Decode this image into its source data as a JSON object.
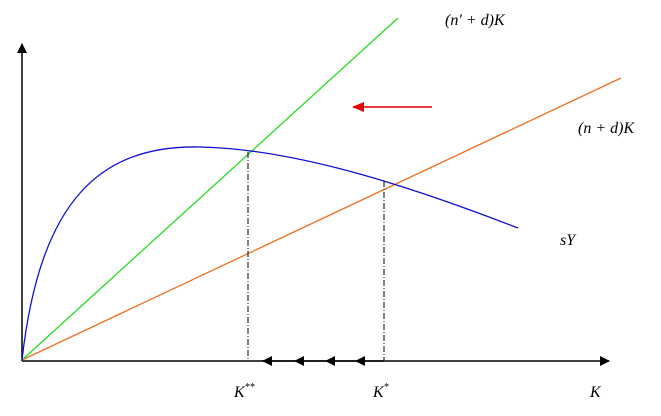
{
  "labels": {
    "line_high": "(n′ + d)K",
    "line_low": "(n + d)K",
    "curve": "sY",
    "k_new": {
      "base": "K",
      "sup": "**"
    },
    "k_old": {
      "base": "K",
      "sup": "*"
    },
    "x_axis": "K"
  }
}
